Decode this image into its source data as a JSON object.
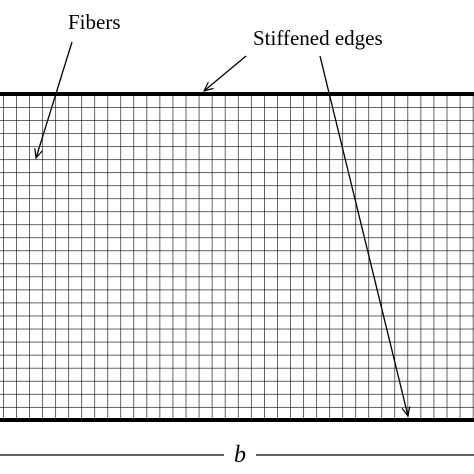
{
  "labels": {
    "fibers": "Fibers",
    "stiffened_edges": "Stiffened edges",
    "width": "b"
  }
}
